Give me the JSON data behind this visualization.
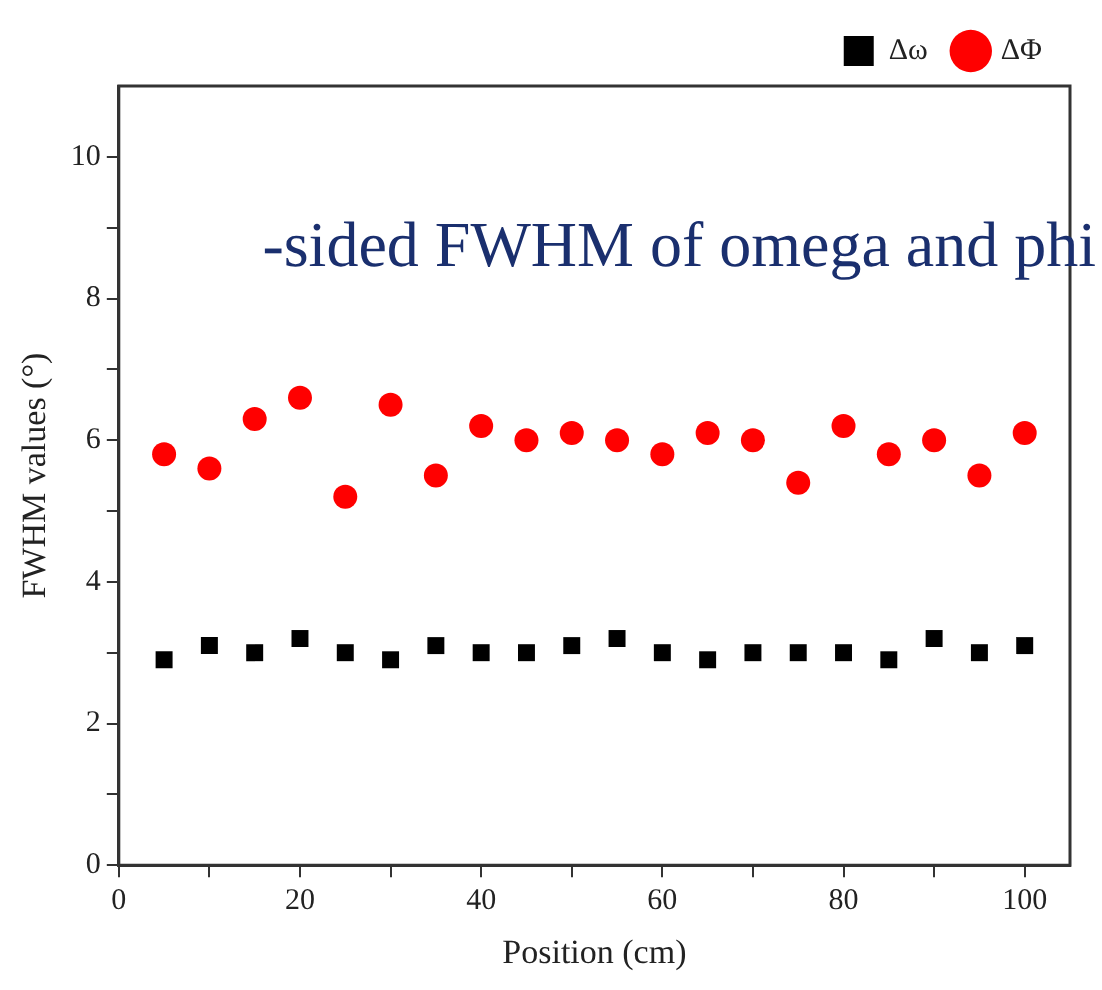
{
  "chart_data": {
    "type": "scatter",
    "title": "-sided FWHM of omega and phi",
    "xlabel": "Position (cm)",
    "ylabel": "FWHM values (°)",
    "x": [
      5,
      10,
      15,
      20,
      25,
      30,
      35,
      40,
      45,
      50,
      55,
      60,
      65,
      70,
      75,
      80,
      85,
      90,
      95,
      100
    ],
    "series": [
      {
        "name": "Δω",
        "color": "#000000",
        "marker": "square",
        "values": [
          2.9,
          3.1,
          3.0,
          3.2,
          3.0,
          2.9,
          3.1,
          3.0,
          3.0,
          3.1,
          3.2,
          3.0,
          2.9,
          3.0,
          3.0,
          3.0,
          2.9,
          3.2,
          3.0,
          3.1
        ]
      },
      {
        "name": "ΔΦ",
        "color": "#ff0000",
        "marker": "circle",
        "values": [
          5.8,
          5.6,
          6.3,
          6.6,
          5.2,
          6.5,
          5.5,
          6.2,
          6.0,
          6.1,
          6.0,
          5.8,
          6.1,
          6.0,
          5.4,
          6.2,
          5.8,
          6.0,
          5.5,
          6.1
        ]
      }
    ],
    "xlim": [
      0,
      105
    ],
    "xticks": [
      0,
      {
        "value": 10,
        "label": null
      },
      20,
      {
        "value": 30,
        "label": null
      },
      40,
      {
        "value": 50,
        "label": null
      },
      60,
      {
        "value": 70,
        "label": null
      },
      80,
      {
        "value": 90,
        "label": null
      },
      100
    ],
    "ylim": [
      0,
      11
    ],
    "yticks": [
      0,
      {
        "value": 1,
        "label": null
      },
      2,
      {
        "value": 3,
        "label": null
      },
      4,
      {
        "value": 5,
        "label": null
      },
      6,
      {
        "value": 7,
        "label": null
      },
      8,
      {
        "value": 9,
        "label": null
      },
      10
    ],
    "grid": false,
    "legend": "top right"
  }
}
